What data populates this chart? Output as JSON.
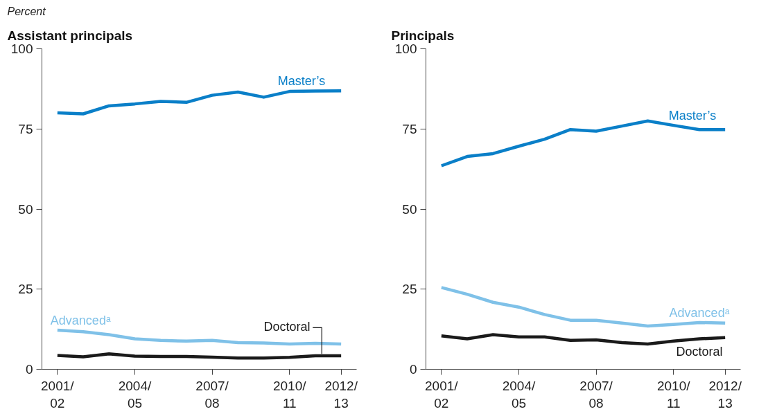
{
  "chart_data": [
    {
      "type": "line",
      "title": "Assistant principals",
      "ylabel": "Percent",
      "categories": [
        "2001/\n02",
        null,
        null,
        "2004/\n05",
        null,
        null,
        "2007/\n08",
        null,
        null,
        "2010/\n11",
        null,
        "2012/\n13"
      ],
      "series": [
        {
          "name": "Master’s",
          "color": "#0a7fc8",
          "values": [
            80.0,
            79.7,
            82.2,
            82.8,
            83.6,
            83.3,
            85.5,
            86.5,
            84.9,
            86.7,
            86.8,
            86.9
          ]
        },
        {
          "name": "Advancedᵃ",
          "color": "#7fc1e8",
          "values": [
            12.2,
            11.7,
            10.8,
            9.5,
            9.0,
            8.8,
            9.0,
            8.3,
            8.2,
            7.9,
            8.1,
            7.9
          ]
        },
        {
          "name": "Doctoral",
          "color": "#1a1a1a",
          "values": [
            4.3,
            3.9,
            4.8,
            4.1,
            4.0,
            4.0,
            3.8,
            3.5,
            3.5,
            3.7,
            4.2,
            4.2
          ]
        }
      ],
      "ylim": [
        0,
        100
      ],
      "yticks": [
        0,
        25,
        50,
        75,
        100
      ],
      "grid": false,
      "marker": "none",
      "line_style": "solid"
    },
    {
      "type": "line",
      "title": "Principals",
      "categories": [
        "2001/\n02",
        null,
        null,
        "2004/\n05",
        null,
        null,
        "2007/\n08",
        null,
        null,
        "2010/\n11",
        null,
        "2012/\n13"
      ],
      "series": [
        {
          "name": "Master’s",
          "color": "#0a7fc8",
          "values": [
            63.5,
            66.4,
            67.3,
            69.6,
            71.8,
            74.8,
            74.3,
            75.9,
            77.5,
            76.1,
            74.8,
            74.8
          ]
        },
        {
          "name": "Advancedᵃ",
          "color": "#7fc1e8",
          "values": [
            25.5,
            23.4,
            20.9,
            19.4,
            17.1,
            15.3,
            15.3,
            14.4,
            13.5,
            14.0,
            14.6,
            14.4
          ]
        },
        {
          "name": "Doctoral",
          "color": "#1a1a1a",
          "values": [
            10.4,
            9.5,
            10.8,
            10.1,
            10.1,
            9.0,
            9.2,
            8.3,
            7.9,
            8.8,
            9.5,
            9.9
          ]
        }
      ],
      "ylim": [
        0,
        100
      ],
      "yticks": [
        0,
        25,
        50,
        75,
        100
      ],
      "grid": false,
      "marker": "none",
      "line_style": "solid"
    }
  ]
}
